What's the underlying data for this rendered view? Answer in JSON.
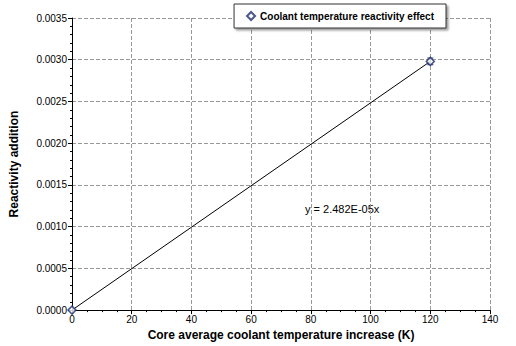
{
  "chart_data": {
    "type": "scatter",
    "xlabel": "Core average coolant temperature increase (K)",
    "ylabel": "Reactivity addition",
    "xlim": [
      0,
      140
    ],
    "xticks": [
      0,
      20,
      40,
      60,
      80,
      100,
      120,
      140
    ],
    "ylim": [
      0,
      0.0035
    ],
    "yticks": [
      {
        "value": 0,
        "label": "0.0000"
      },
      {
        "value": 0.0005,
        "label": "0.0005"
      },
      {
        "value": 0.001,
        "label": "0.0010"
      },
      {
        "value": 0.0015,
        "label": "0.0015"
      },
      {
        "value": 0.002,
        "label": "0.0020"
      },
      {
        "value": 0.0025,
        "label": "0.0025"
      },
      {
        "value": 0.003,
        "label": "0.0030"
      },
      {
        "value": 0.0035,
        "label": "0.0035"
      }
    ],
    "grid": true,
    "legend": "top",
    "series": [
      {
        "name": "Coolant temperature reactivity effect",
        "type": "scatter",
        "marker": "diamond",
        "color": "#1f2d6b",
        "x": [
          0,
          120
        ],
        "values": [
          0,
          0.00298
        ],
        "errors": [
          0,
          4e-05
        ]
      },
      {
        "type": "line",
        "color": "#000000",
        "x": [
          0,
          120
        ],
        "values": [
          0,
          0.00298
        ]
      }
    ],
    "annotations": [
      "y = 2.482E-05x"
    ]
  }
}
